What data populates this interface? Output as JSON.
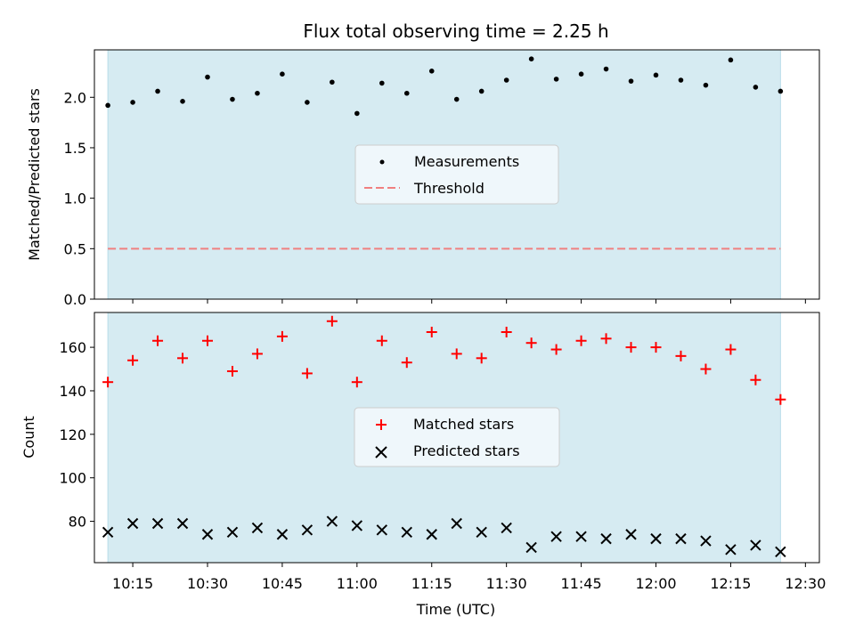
{
  "chart_data": [
    {
      "type": "scatter",
      "title": "Flux total observing time = 2.25 h",
      "ylabel": "Matched/Predicted stars",
      "xlabel": "",
      "ylim": [
        0,
        2.47
      ],
      "yticks": [
        "0.0",
        "0.5",
        "1.0",
        "1.5",
        "2.0"
      ],
      "x": [
        "10:10",
        "10:15",
        "10:20",
        "10:25",
        "10:30",
        "10:35",
        "10:40",
        "10:45",
        "10:50",
        "10:55",
        "11:00",
        "11:05",
        "11:10",
        "11:15",
        "11:20",
        "11:25",
        "11:30",
        "11:35",
        "11:40",
        "11:45",
        "11:50",
        "11:55",
        "12:00",
        "12:05",
        "12:10",
        "12:15",
        "12:20",
        "12:25"
      ],
      "series": [
        {
          "name": "Measurements",
          "marker": "dot",
          "color": "#000000",
          "values": [
            1.92,
            1.95,
            2.06,
            1.96,
            2.2,
            1.98,
            2.04,
            2.23,
            1.95,
            2.15,
            1.84,
            2.14,
            2.04,
            2.26,
            1.98,
            2.06,
            2.17,
            2.38,
            2.18,
            2.23,
            2.28,
            2.16,
            2.22,
            2.17,
            2.12,
            2.37,
            2.1,
            2.06
          ]
        }
      ],
      "threshold": {
        "name": "Threshold",
        "value": 0.5,
        "color": "#f08080",
        "style": "dashed"
      },
      "shaded_span": {
        "from": "10:10",
        "to": "12:25",
        "color": "#add8e6"
      },
      "legend": "center"
    },
    {
      "type": "scatter",
      "title": "",
      "ylabel": "Count",
      "xlabel": "Time (UTC)",
      "ylim": [
        61,
        176
      ],
      "yticks": [
        "80",
        "100",
        "120",
        "140",
        "160"
      ],
      "xticks": [
        "10:15",
        "10:30",
        "10:45",
        "11:00",
        "11:15",
        "11:30",
        "11:45",
        "12:00",
        "12:15",
        "12:30"
      ],
      "x": [
        "10:10",
        "10:15",
        "10:20",
        "10:25",
        "10:30",
        "10:35",
        "10:40",
        "10:45",
        "10:50",
        "10:55",
        "11:00",
        "11:05",
        "11:10",
        "11:15",
        "11:20",
        "11:25",
        "11:30",
        "11:35",
        "11:40",
        "11:45",
        "11:50",
        "11:55",
        "12:00",
        "12:05",
        "12:10",
        "12:15",
        "12:20",
        "12:25"
      ],
      "series": [
        {
          "name": "Matched stars",
          "marker": "plus",
          "color": "#ff0000",
          "values": [
            144,
            154,
            163,
            155,
            163,
            149,
            157,
            165,
            148,
            172,
            144,
            163,
            153,
            167,
            157,
            155,
            167,
            162,
            159,
            163,
            164,
            160,
            160,
            156,
            150,
            159,
            145,
            136
          ]
        },
        {
          "name": "Predicted stars",
          "marker": "x",
          "color": "#000000",
          "values": [
            75,
            79,
            79,
            79,
            74,
            75,
            77,
            74,
            76,
            80,
            78,
            76,
            75,
            74,
            79,
            75,
            77,
            68,
            73,
            73,
            72,
            74,
            72,
            72,
            71,
            67,
            69,
            66
          ]
        }
      ],
      "shaded_span": {
        "from": "10:10",
        "to": "12:25",
        "color": "#add8e6"
      },
      "legend": "center"
    }
  ]
}
